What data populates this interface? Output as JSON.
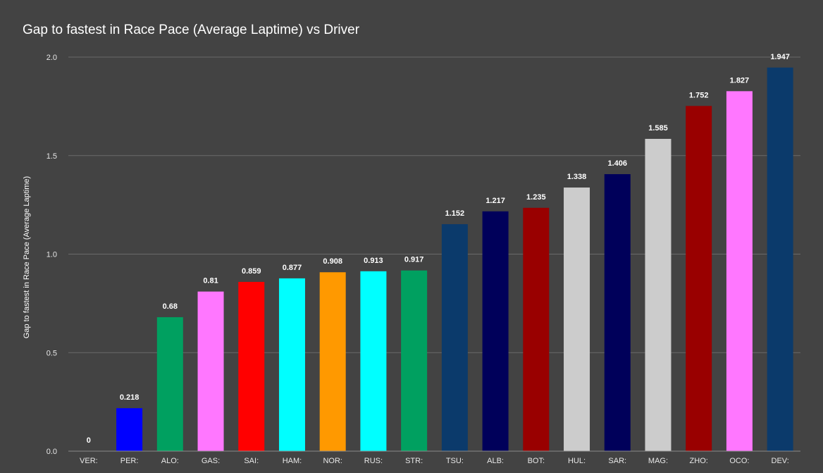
{
  "chart_data": {
    "type": "bar",
    "title": "Gap to fastest in Race Pace (Average Laptime) vs Driver",
    "xlabel": "",
    "ylabel": "Gap to fastest in Race Pace (Average Laptime)",
    "ylim": [
      0,
      2.0
    ],
    "yticks": [
      0.0,
      0.5,
      1.0,
      1.5,
      2.0
    ],
    "ytick_labels": [
      "0.0",
      "0.5",
      "1.0",
      "1.5",
      "2.0"
    ],
    "grid": true,
    "legend": "none",
    "categories": [
      "VER:",
      "PER:",
      "ALO:",
      "GAS:",
      "SAI:",
      "HAM:",
      "NOR:",
      "RUS:",
      "STR:",
      "TSU:",
      "ALB:",
      "BOT:",
      "HUL:",
      "SAR:",
      "MAG:",
      "ZHO:",
      "OCO:",
      "DEV:"
    ],
    "values": [
      0,
      0.218,
      0.68,
      0.81,
      0.859,
      0.877,
      0.908,
      0.913,
      0.917,
      1.152,
      1.217,
      1.235,
      1.338,
      1.406,
      1.585,
      1.752,
      1.827,
      1.947
    ],
    "value_labels": [
      "0",
      "0.218",
      "0.68",
      "0.81",
      "0.859",
      "0.877",
      "0.908",
      "0.913",
      "0.917",
      "1.152",
      "1.217",
      "1.235",
      "1.338",
      "1.406",
      "1.585",
      "1.752",
      "1.827",
      "1.947"
    ],
    "colors": [
      "#1e41ff",
      "#0000ff",
      "#00a060",
      "#ff77ff",
      "#ff0000",
      "#00ffff",
      "#ff9900",
      "#00ffff",
      "#00a060",
      "#0b3a6b",
      "#00005a",
      "#990000",
      "#cccccc",
      "#00005a",
      "#cccccc",
      "#990000",
      "#ff77ff",
      "#0b3a6b"
    ],
    "text_color": "#ffffff",
    "background": "#434343",
    "grid_color": "#6a6a6a"
  }
}
